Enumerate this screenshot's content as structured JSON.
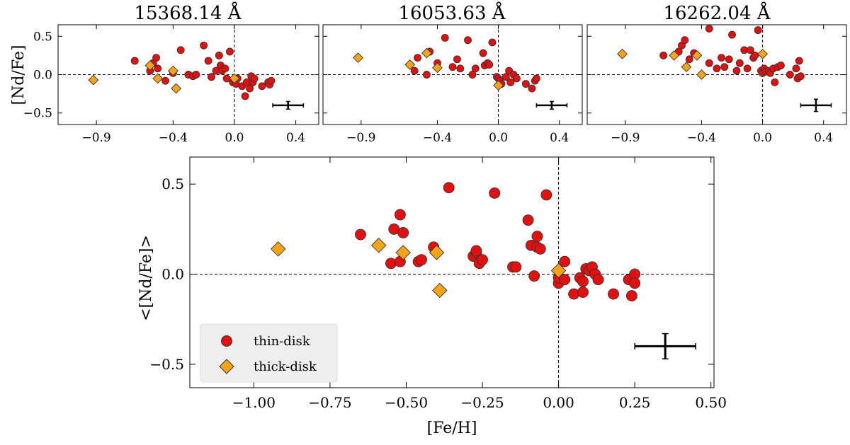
{
  "figure": {
    "colors": {
      "thin": "#e41010",
      "thick": "#f5a417",
      "edge": "#333333"
    }
  },
  "chart_data": [
    {
      "type": "scatter",
      "title": "15368.14 Å",
      "ylabel": "[Nd/Fe]",
      "xlabel": "",
      "xlim": [
        -1.15,
        0.55
      ],
      "ylim": [
        -0.65,
        0.65
      ],
      "xticks": [
        -0.9,
        -0.4,
        0.0,
        0.4
      ],
      "xtick_labels": [
        "−0.9",
        "−0.4",
        "0.0",
        "0.4"
      ],
      "yticks": [
        0.5,
        0.0,
        -0.5
      ],
      "ytick_labels": [
        "0.5",
        "0.0",
        "−0.5"
      ],
      "reference_lines": {
        "x": 0.0,
        "y": 0.0
      },
      "errorbar": {
        "x": 0.35,
        "y": -0.4,
        "xerr": 0.1,
        "yerr": 0.05
      },
      "series": [
        {
          "name": "thin-disk",
          "marker": "circle",
          "x": [
            -0.65,
            -0.55,
            -0.53,
            -0.51,
            -0.5,
            -0.45,
            -0.35,
            -0.3,
            -0.27,
            -0.25,
            -0.2,
            -0.17,
            -0.15,
            -0.12,
            -0.1,
            -0.09,
            -0.08,
            -0.06,
            -0.05,
            -0.03,
            -0.01,
            0.0,
            0.01,
            0.02,
            0.05,
            0.07,
            0.08,
            0.1,
            0.11,
            0.12,
            0.13,
            0.18,
            0.22,
            0.23,
            0.24,
            -0.4
          ],
          "y": [
            0.18,
            0.05,
            0.15,
            0.22,
            0.08,
            -0.08,
            0.32,
            0.0,
            -0.02,
            0.0,
            0.38,
            0.18,
            -0.03,
            0.05,
            0.25,
            0.12,
            0.05,
            0.08,
            -0.05,
            0.3,
            -0.1,
            -0.06,
            -0.12,
            -0.05,
            -0.15,
            -0.28,
            -0.1,
            -0.18,
            -0.02,
            -0.1,
            -0.05,
            -0.15,
            -0.1,
            -0.13,
            -0.08,
            0.02
          ]
        },
        {
          "name": "thick-disk",
          "marker": "diamond",
          "x": [
            -0.92,
            -0.55,
            -0.4,
            -0.38,
            -0.5,
            0.0
          ],
          "y": [
            -0.07,
            0.12,
            0.05,
            -0.18,
            -0.05,
            -0.05
          ]
        }
      ]
    },
    {
      "type": "scatter",
      "title": "16053.63 Å",
      "ylabel": "",
      "xlabel": "",
      "xlim": [
        -1.15,
        0.55
      ],
      "ylim": [
        -0.65,
        0.65
      ],
      "xticks": [
        -0.9,
        -0.4,
        0.0,
        0.4
      ],
      "xtick_labels": [
        "−0.9",
        "−0.4",
        "0.0",
        "0.4"
      ],
      "yticks": [
        0.5,
        0.0,
        -0.5
      ],
      "ytick_labels": [
        "",
        "",
        ""
      ],
      "reference_lines": {
        "x": 0.0,
        "y": 0.0
      },
      "errorbar": {
        "x": 0.35,
        "y": -0.4,
        "xerr": 0.1,
        "yerr": 0.05
      },
      "series": [
        {
          "name": "thin-disk",
          "marker": "circle",
          "x": [
            -0.55,
            -0.53,
            -0.47,
            -0.4,
            -0.35,
            -0.3,
            -0.27,
            -0.25,
            -0.2,
            -0.17,
            -0.15,
            -0.1,
            -0.09,
            -0.07,
            -0.06,
            -0.04,
            -0.01,
            0.0,
            0.01,
            0.02,
            0.05,
            0.07,
            0.08,
            0.1,
            0.12,
            0.18,
            0.22,
            0.24,
            0.25,
            -0.45
          ],
          "y": [
            0.05,
            0.22,
            0.0,
            0.15,
            0.48,
            0.1,
            0.2,
            0.08,
            0.45,
            0.0,
            0.08,
            0.28,
            0.12,
            0.15,
            0.13,
            0.42,
            -0.03,
            -0.05,
            -0.08,
            -0.12,
            -0.03,
            0.05,
            -0.1,
            0.0,
            -0.05,
            -0.12,
            -0.18,
            -0.08,
            -0.05,
            0.3
          ]
        },
        {
          "name": "thick-disk",
          "marker": "diamond",
          "x": [
            -0.92,
            -0.58,
            -0.47,
            -0.4,
            0.0
          ],
          "y": [
            0.22,
            0.13,
            0.28,
            0.09,
            -0.14
          ]
        }
      ]
    },
    {
      "type": "scatter",
      "title": "16262.04 Å",
      "ylabel": "",
      "xlabel": "",
      "xlim": [
        -1.15,
        0.55
      ],
      "ylim": [
        -0.65,
        0.65
      ],
      "xticks": [
        -0.9,
        -0.4,
        0.0,
        0.4
      ],
      "xtick_labels": [
        "−0.9",
        "−0.4",
        "0.0",
        "0.4"
      ],
      "yticks": [
        0.5,
        0.0,
        -0.5
      ],
      "ytick_labels": [
        "",
        "",
        ""
      ],
      "reference_lines": {
        "x": 0.0,
        "y": 0.0
      },
      "errorbar": {
        "x": 0.35,
        "y": -0.4,
        "xerr": 0.1,
        "yerr": 0.08
      },
      "series": [
        {
          "name": "thin-disk",
          "marker": "circle",
          "x": [
            -0.65,
            -0.55,
            -0.53,
            -0.51,
            -0.48,
            -0.45,
            -0.35,
            -0.3,
            -0.27,
            -0.25,
            -0.22,
            -0.2,
            -0.15,
            -0.12,
            -0.1,
            -0.08,
            -0.06,
            -0.05,
            -0.03,
            -0.01,
            0.0,
            0.01,
            0.02,
            0.04,
            0.05,
            0.07,
            0.08,
            0.1,
            0.12,
            0.18,
            0.22,
            0.23,
            0.24,
            0.25,
            -0.17,
            -0.35
          ],
          "y": [
            0.25,
            0.3,
            0.38,
            0.45,
            0.2,
            0.28,
            0.6,
            0.08,
            0.22,
            0.1,
            0.2,
            0.52,
            0.15,
            0.32,
            0.08,
            0.32,
            0.22,
            0.25,
            0.58,
            0.05,
            0.02,
            0.08,
            0.04,
            0.05,
            0.02,
            0.08,
            -0.1,
            0.1,
            0.12,
            0.0,
            0.08,
            -0.05,
            0.18,
            -0.02,
            0.05,
            0.15
          ]
        },
        {
          "name": "thick-disk",
          "marker": "diamond",
          "x": [
            -0.92,
            -0.58,
            -0.5,
            -0.43,
            -0.4,
            0.0
          ],
          "y": [
            0.27,
            0.25,
            0.1,
            0.25,
            0.0,
            0.27
          ]
        }
      ]
    },
    {
      "type": "scatter",
      "title": "",
      "ylabel": "<[Nd/Fe]>",
      "xlabel": "[Fe/H]",
      "xlim": [
        -1.21,
        0.51
      ],
      "ylim": [
        -0.63,
        0.65
      ],
      "xticks": [
        -1.0,
        -0.75,
        -0.5,
        -0.25,
        0.0,
        0.25,
        0.5
      ],
      "xtick_labels": [
        "−1.00",
        "−0.75",
        "−0.50",
        "−0.25",
        "0.00",
        "0.25",
        "0.50"
      ],
      "yticks": [
        0.5,
        0.0,
        -0.5
      ],
      "ytick_labels": [
        "0.5",
        "0.0",
        "−0.5"
      ],
      "reference_lines": {
        "x": 0.0,
        "y": 0.0
      },
      "errorbar": {
        "x": 0.35,
        "y": -0.4,
        "xerr": 0.1,
        "yerr": 0.07
      },
      "legend": {
        "location": "lower-left",
        "entries": [
          "thin-disk",
          "thick-disk"
        ]
      },
      "series": [
        {
          "name": "thin-disk",
          "marker": "circle",
          "x": [
            -0.65,
            -0.55,
            -0.54,
            -0.52,
            -0.52,
            -0.51,
            -0.46,
            -0.45,
            -0.41,
            -0.36,
            -0.28,
            -0.27,
            -0.27,
            -0.26,
            -0.25,
            -0.21,
            -0.15,
            -0.14,
            -0.1,
            -0.09,
            -0.08,
            -0.07,
            -0.07,
            -0.06,
            -0.04,
            0.0,
            0.0,
            0.02,
            0.02,
            0.05,
            0.07,
            0.08,
            0.08,
            0.09,
            0.1,
            0.11,
            0.12,
            0.13,
            0.18,
            0.23,
            0.24,
            0.25,
            0.25
          ],
          "y": [
            0.22,
            0.06,
            0.25,
            0.07,
            0.33,
            0.23,
            0.07,
            0.08,
            0.15,
            0.48,
            0.1,
            0.12,
            0.13,
            0.06,
            0.08,
            0.45,
            0.04,
            0.04,
            0.3,
            0.16,
            -0.01,
            0.15,
            0.21,
            0.14,
            0.44,
            -0.05,
            -0.02,
            0.07,
            -0.03,
            -0.11,
            -0.02,
            -0.1,
            -0.04,
            0.03,
            0.02,
            0.04,
            0.0,
            -0.03,
            -0.11,
            -0.03,
            -0.12,
            0.0,
            -0.05
          ]
        },
        {
          "name": "thick-disk",
          "marker": "diamond",
          "x": [
            -0.92,
            -0.59,
            -0.51,
            -0.4,
            -0.39,
            0.0
          ],
          "y": [
            0.14,
            0.16,
            0.12,
            0.12,
            -0.09,
            0.02
          ]
        }
      ]
    }
  ]
}
